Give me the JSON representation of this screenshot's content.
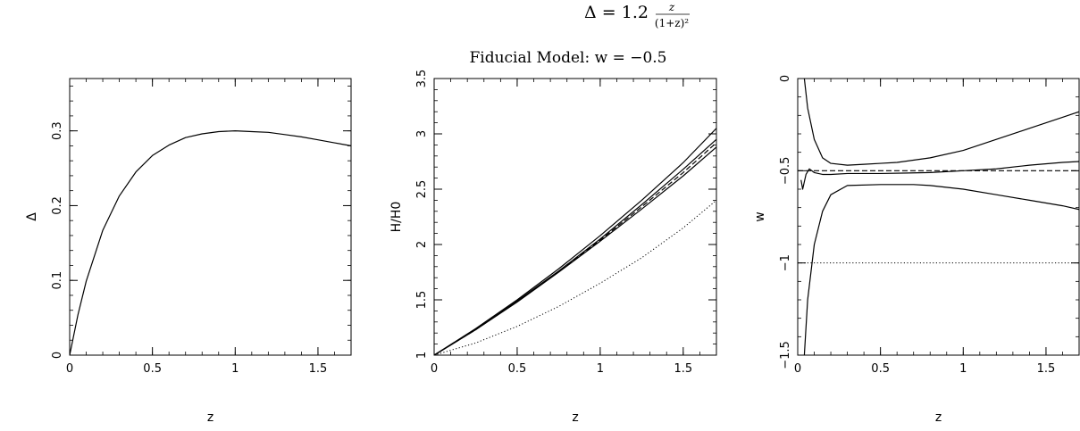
{
  "header": {
    "formula_prefix": "Δ = 1.2",
    "formula_num": "z",
    "formula_den": "(1+z)²",
    "subtitle": "Fiducial Model: w = −0.5"
  },
  "chart_data": [
    {
      "type": "line",
      "xlabel": "z",
      "ylabel": "Δ",
      "xlim": [
        0,
        1.7
      ],
      "ylim": [
        0,
        0.37
      ],
      "xticks": [
        0,
        0.5,
        1,
        1.5
      ],
      "xtick_labels": [
        "0",
        "0.5",
        "1",
        "1.5"
      ],
      "yticks": [
        0,
        0.1,
        0.2,
        0.3
      ],
      "ytick_labels": [
        "0",
        "0.1",
        "0.2",
        "0.3"
      ],
      "grid": false,
      "series": [
        {
          "style": "solid",
          "color": "#000000",
          "x": [
            0,
            0.05,
            0.1,
            0.2,
            0.3,
            0.4,
            0.5,
            0.6,
            0.7,
            0.8,
            0.9,
            1.0,
            1.1,
            1.2,
            1.3,
            1.4,
            1.5,
            1.6,
            1.7
          ],
          "y": [
            0,
            0.054,
            0.099,
            0.167,
            0.213,
            0.245,
            0.267,
            0.281,
            0.291,
            0.296,
            0.299,
            0.3,
            0.299,
            0.298,
            0.295,
            0.292,
            0.288,
            0.284,
            0.28
          ]
        }
      ]
    },
    {
      "type": "line",
      "xlabel": "z",
      "ylabel": "H/H0",
      "xlim": [
        0,
        1.7
      ],
      "ylim": [
        1,
        3.5
      ],
      "xticks": [
        0,
        0.5,
        1,
        1.5
      ],
      "xtick_labels": [
        "0",
        "0.5",
        "1",
        "1.5"
      ],
      "yticks": [
        1,
        1.5,
        2,
        2.5,
        3,
        3.5
      ],
      "ytick_labels": [
        "1",
        "1.5",
        "2",
        "2.5",
        "3",
        "3.5"
      ],
      "grid": false,
      "series": [
        {
          "style": "solid",
          "color": "#000000",
          "x": [
            0,
            0.25,
            0.5,
            0.75,
            1.0,
            1.25,
            1.5,
            1.7
          ],
          "y": [
            1.0,
            1.24,
            1.5,
            1.78,
            2.08,
            2.4,
            2.74,
            3.05
          ]
        },
        {
          "style": "solid",
          "color": "#000000",
          "x": [
            0,
            0.25,
            0.5,
            0.75,
            1.0,
            1.25,
            1.5,
            1.7
          ],
          "y": [
            1.0,
            1.23,
            1.49,
            1.76,
            2.05,
            2.36,
            2.68,
            2.95
          ]
        },
        {
          "style": "solid",
          "color": "#000000",
          "x": [
            0,
            0.25,
            0.5,
            0.75,
            1.0,
            1.25,
            1.5,
            1.7
          ],
          "y": [
            1.0,
            1.23,
            1.48,
            1.75,
            2.03,
            2.32,
            2.62,
            2.88
          ]
        },
        {
          "style": "dashed",
          "color": "#000000",
          "x": [
            0,
            0.25,
            0.5,
            0.75,
            1.0,
            1.25,
            1.5,
            1.7
          ],
          "y": [
            1.0,
            1.23,
            1.485,
            1.755,
            2.04,
            2.34,
            2.65,
            2.92
          ]
        },
        {
          "style": "dotted",
          "color": "#000000",
          "x": [
            0,
            0.25,
            0.5,
            0.75,
            1.0,
            1.25,
            1.5,
            1.7
          ],
          "y": [
            1.0,
            1.11,
            1.26,
            1.44,
            1.65,
            1.88,
            2.15,
            2.4
          ]
        }
      ]
    },
    {
      "type": "line",
      "xlabel": "z",
      "ylabel": "w",
      "xlim": [
        0,
        1.7
      ],
      "ylim": [
        -1.5,
        0
      ],
      "xticks": [
        0,
        0.5,
        1,
        1.5
      ],
      "xtick_labels": [
        "0",
        "0.5",
        "1",
        "1.5"
      ],
      "yticks": [
        -1.5,
        -1,
        -0.5,
        0
      ],
      "ytick_labels": [
        "−1.5",
        "−1",
        "−0.5",
        "0"
      ],
      "grid": false,
      "series": [
        {
          "style": "solid",
          "color": "#000000",
          "x": [
            0.04,
            0.06,
            0.1,
            0.15,
            0.2,
            0.3,
            0.4,
            0.5,
            0.6,
            0.8,
            1.0,
            1.2,
            1.4,
            1.6,
            1.7
          ],
          "y": [
            0.0,
            -0.16,
            -0.33,
            -0.43,
            -0.46,
            -0.47,
            -0.465,
            -0.46,
            -0.455,
            -0.43,
            -0.39,
            -0.33,
            -0.27,
            -0.21,
            -0.18
          ]
        },
        {
          "style": "solid",
          "color": "#000000",
          "x": [
            0.02,
            0.03,
            0.05,
            0.07,
            0.1,
            0.15,
            0.2,
            0.3,
            0.5,
            0.8,
            1.0,
            1.2,
            1.4,
            1.6,
            1.7
          ],
          "y": [
            -0.55,
            -0.6,
            -0.52,
            -0.49,
            -0.51,
            -0.52,
            -0.52,
            -0.515,
            -0.515,
            -0.51,
            -0.5,
            -0.49,
            -0.47,
            -0.455,
            -0.45
          ]
        },
        {
          "style": "solid",
          "color": "#000000",
          "x": [
            0.04,
            0.06,
            0.1,
            0.15,
            0.2,
            0.3,
            0.5,
            0.7,
            0.8,
            1.0,
            1.2,
            1.4,
            1.6,
            1.7
          ],
          "y": [
            -1.5,
            -1.2,
            -0.9,
            -0.72,
            -0.63,
            -0.58,
            -0.575,
            -0.575,
            -0.58,
            -0.6,
            -0.63,
            -0.66,
            -0.69,
            -0.71
          ]
        },
        {
          "style": "dashed",
          "color": "#000000",
          "x": [
            0.0,
            1.7
          ],
          "y": [
            -0.5,
            -0.5
          ]
        },
        {
          "style": "dotted",
          "color": "#000000",
          "x": [
            0.0,
            1.7
          ],
          "y": [
            -1.0,
            -1.0
          ]
        }
      ]
    }
  ]
}
